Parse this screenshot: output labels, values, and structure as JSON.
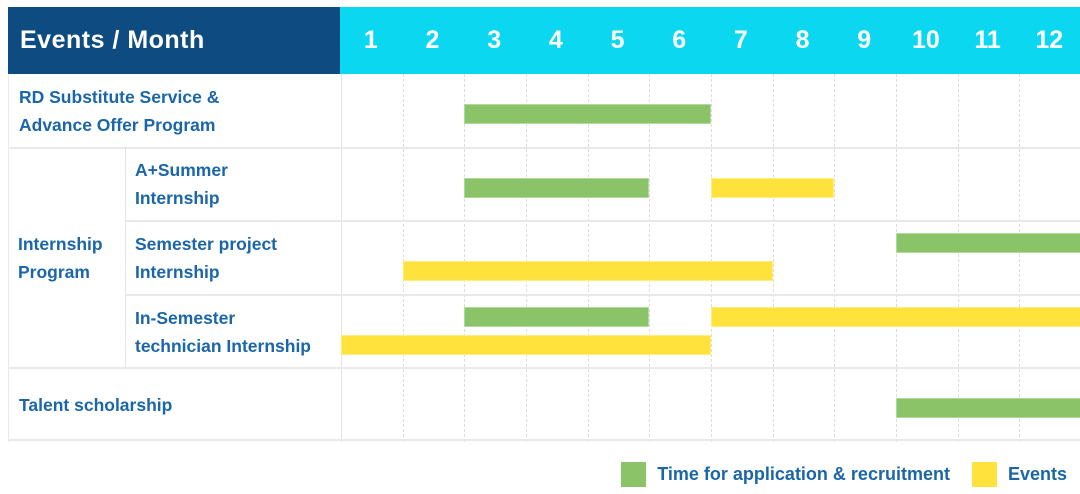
{
  "colors": {
    "header_bg": "#0E4B80",
    "months_bg": "#0BD8F0",
    "label_text": "#1A66A8",
    "header_text": "#FFFFFF",
    "application_green": "#8BC369",
    "event_yellow": "#FFE33C",
    "row_line": "#E9E9E9",
    "month_line_dashed": "#DCDCDC"
  },
  "chart_data": {
    "type": "gantt",
    "corner_label": "Events / Month",
    "x_axis_label": "Month",
    "months": [
      "1",
      "2",
      "3",
      "4",
      "5",
      "6",
      "7",
      "8",
      "9",
      "10",
      "11",
      "12"
    ],
    "x_range": [
      1,
      12
    ],
    "grid": "dashed-vertical",
    "legend_position": "bottom-right",
    "legend": [
      {
        "key": "application",
        "label": "Time for application & recruitment",
        "color": "#8BC369"
      },
      {
        "key": "event",
        "label": "Events",
        "color": "#FFE33C"
      }
    ],
    "rows": [
      {
        "group": "",
        "label": "RD Substitute Service & Advance Offer Program",
        "label_lines": [
          "RD Substitute Service &",
          "Advance Offer Program"
        ],
        "lanes": [
          [
            {
              "type": "application",
              "start_month": 3,
              "end_month": 6
            }
          ]
        ]
      },
      {
        "group": "Internship Program",
        "label": "A+Summer Internship",
        "label_lines": [
          "A+Summer",
          "Internship"
        ],
        "lanes": [
          [
            {
              "type": "application",
              "start_month": 3,
              "end_month": 5
            },
            {
              "type": "event",
              "start_month": 7,
              "end_month": 8
            }
          ]
        ]
      },
      {
        "group": "Internship Program",
        "label": "Semester project Internship",
        "label_lines": [
          "Semester project",
          "Internship"
        ],
        "lanes": [
          [
            {
              "type": "application",
              "start_month": 10,
              "end_month": 12
            }
          ],
          [
            {
              "type": "event",
              "start_month": 2,
              "end_month": 7
            }
          ]
        ]
      },
      {
        "group": "Internship Program",
        "label": "In-Semester technician Internship",
        "label_lines": [
          "In-Semester",
          "technician Internship"
        ],
        "lanes": [
          [
            {
              "type": "application",
              "start_month": 3,
              "end_month": 5
            },
            {
              "type": "event",
              "start_month": 7,
              "end_month": 12
            }
          ],
          [
            {
              "type": "event",
              "start_month": 1,
              "end_month": 6
            }
          ]
        ]
      },
      {
        "group": "",
        "label": "Talent scholarship",
        "label_lines": [
          "Talent scholarship"
        ],
        "lanes": [
          [
            {
              "type": "application",
              "start_month": 10,
              "end_month": 12
            }
          ]
        ]
      }
    ],
    "group_label_lines": [
      "Internship",
      "Program"
    ]
  }
}
